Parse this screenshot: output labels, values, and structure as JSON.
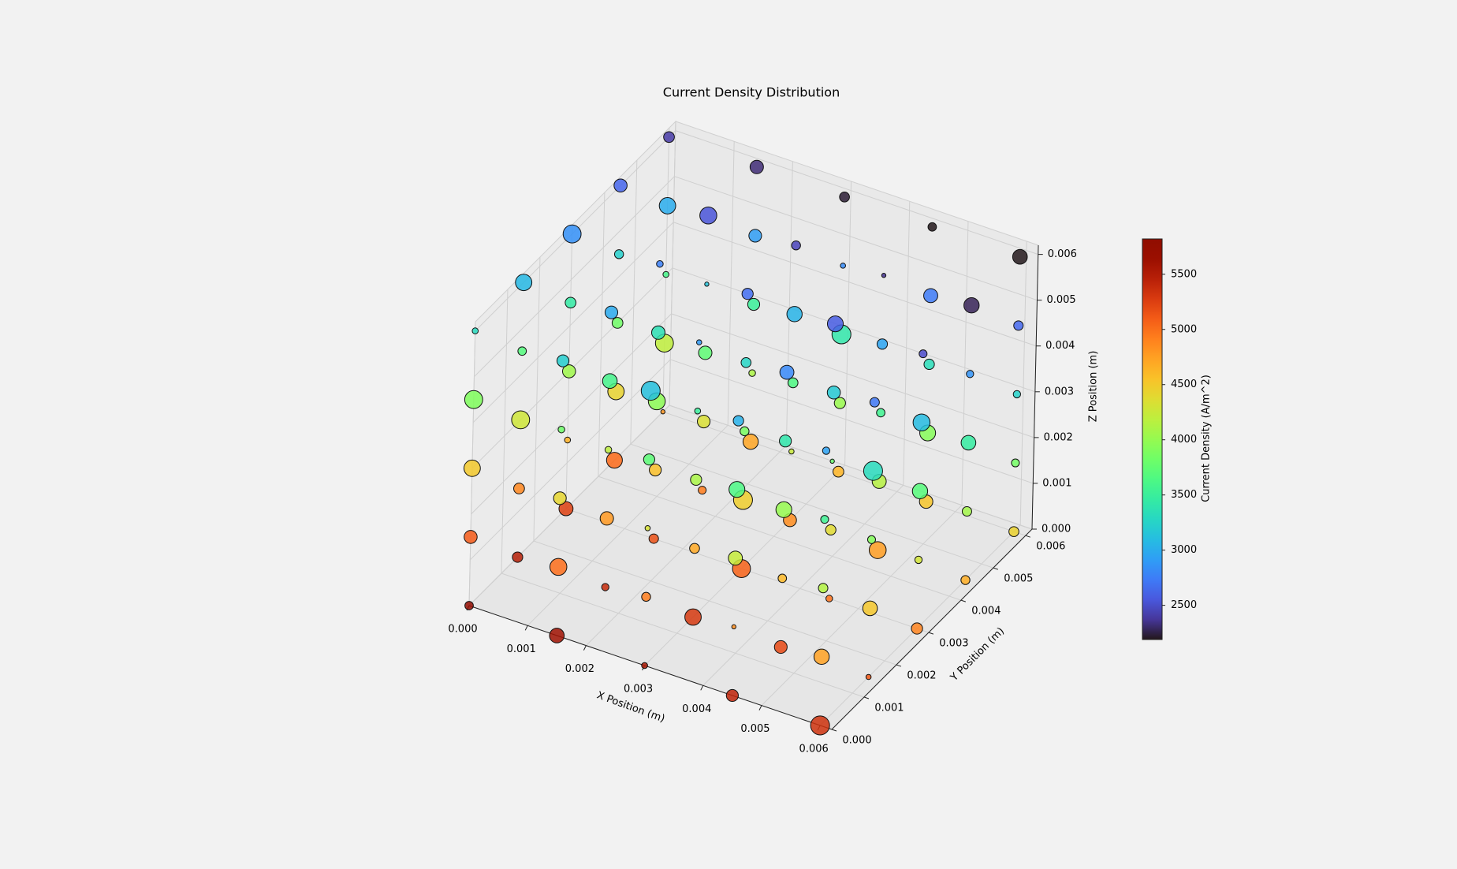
{
  "chart_data": {
    "type": "scatter3d",
    "title": "Current Density Distribution",
    "xlabel": "X Position (m)",
    "ylabel": "Y Position (m)",
    "zlabel": "Z Position (m)",
    "colorbar_label": "Current Density (A/m^2)",
    "colormap": "turbo",
    "clim": [
      2190,
      5820
    ],
    "cticks": [
      2500,
      3000,
      3500,
      4000,
      4500,
      5000,
      5500
    ],
    "xlim": [
      0,
      0.0062
    ],
    "ylim": [
      0,
      0.0062
    ],
    "zlim": [
      0,
      0.0062
    ],
    "xticks": [
      {
        "value": 0,
        "label": "0.000"
      },
      {
        "value": 0.001,
        "label": "0.001"
      },
      {
        "value": 0.002,
        "label": "0.002"
      },
      {
        "value": 0.003,
        "label": "0.003"
      },
      {
        "value": 0.004,
        "label": "0.004"
      },
      {
        "value": 0.005,
        "label": "0.005"
      },
      {
        "value": 0.006,
        "label": "0.006"
      }
    ],
    "yticks": [
      {
        "value": 0,
        "label": "0.000"
      },
      {
        "value": 0.001,
        "label": "0.001"
      },
      {
        "value": 0.002,
        "label": "0.002"
      },
      {
        "value": 0.003,
        "label": "0.003"
      },
      {
        "value": 0.004,
        "label": "0.004"
      },
      {
        "value": 0.005,
        "label": "0.005"
      },
      {
        "value": 0.006,
        "label": "0.006"
      }
    ],
    "zticks": [
      {
        "value": 0,
        "label": "0.000"
      },
      {
        "value": 0.001,
        "label": "0.001"
      },
      {
        "value": 0.002,
        "label": "0.002"
      },
      {
        "value": 0.003,
        "label": "0.003"
      },
      {
        "value": 0.004,
        "label": "0.004"
      },
      {
        "value": 0.005,
        "label": "0.005"
      },
      {
        "value": 0.006,
        "label": "0.006"
      }
    ],
    "x": [
      0,
      0.0015,
      0.003,
      0.0045,
      0.006,
      0,
      0.0015,
      0.003,
      0.0045,
      0.006,
      0,
      0.0015,
      0.003,
      0.0045,
      0.006,
      0,
      0.0015,
      0.003,
      0.0045,
      0.006,
      0,
      0.0015,
      0.003,
      0.0045,
      0.006,
      0,
      0.0015,
      0.003,
      0.0045,
      0.006,
      0,
      0.0015,
      0.003,
      0.0045,
      0.006,
      0,
      0.0015,
      0.003,
      0.0045,
      0.006,
      0,
      0.0015,
      0.003,
      0.0045,
      0.006,
      0,
      0.0015,
      0.003,
      0.0045,
      0.006,
      0,
      0.0015,
      0.003,
      0.0045,
      0.006,
      0,
      0.0015,
      0.003,
      0.0045,
      0.006,
      0,
      0.0015,
      0.003,
      0.0045,
      0.006,
      0,
      0.0015,
      0.003,
      0.0045,
      0.006,
      0,
      0.0015,
      0.003,
      0.0045,
      0.006,
      0,
      0.0015,
      0.003,
      0.0045,
      0.006,
      0,
      0.0015,
      0.003,
      0.0045,
      0.006,
      0,
      0.0015,
      0.003,
      0.0045,
      0.006,
      0,
      0.0015,
      0.003,
      0.0045,
      0.006,
      0,
      0.0015,
      0.003,
      0.0045,
      0.006,
      0,
      0.0015,
      0.003,
      0.0045,
      0.006,
      0,
      0.0015,
      0.003,
      0.0045,
      0.006,
      0,
      0.0015,
      0.003,
      0.0045,
      0.006,
      0,
      0.0015,
      0.003,
      0.0045,
      0.006,
      0,
      0.0015,
      0.003,
      0.0045,
      0.006
    ],
    "y": [
      0,
      0,
      0,
      0,
      0,
      0.0015,
      0.0015,
      0.0015,
      0.0015,
      0.0015,
      0.003,
      0.003,
      0.003,
      0.003,
      0.003,
      0.0045,
      0.0045,
      0.0045,
      0.0045,
      0.0045,
      0.006,
      0.006,
      0.006,
      0.006,
      0.006,
      0,
      0,
      0,
      0,
      0,
      0.0015,
      0.0015,
      0.0015,
      0.0015,
      0.0015,
      0.003,
      0.003,
      0.003,
      0.003,
      0.003,
      0.0045,
      0.0045,
      0.0045,
      0.0045,
      0.0045,
      0.006,
      0.006,
      0.006,
      0.006,
      0.006,
      0,
      0,
      0,
      0,
      0,
      0.0015,
      0.0015,
      0.0015,
      0.0015,
      0.0015,
      0.003,
      0.003,
      0.003,
      0.003,
      0.003,
      0.0045,
      0.0045,
      0.0045,
      0.0045,
      0.0045,
      0.006,
      0.006,
      0.006,
      0.006,
      0.006,
      0,
      0,
      0,
      0,
      0,
      0.0015,
      0.0015,
      0.0015,
      0.0015,
      0.0015,
      0.003,
      0.003,
      0.003,
      0.003,
      0.003,
      0.0045,
      0.0045,
      0.0045,
      0.0045,
      0.0045,
      0.006,
      0.006,
      0.006,
      0.006,
      0.006,
      0,
      0,
      0,
      0,
      0,
      0.0015,
      0.0015,
      0.0015,
      0.0015,
      0.0015,
      0.003,
      0.003,
      0.003,
      0.003,
      0.003,
      0.0045,
      0.0045,
      0.0045,
      0.0045,
      0.0045,
      0.006,
      0.006,
      0.006,
      0.006,
      0.006
    ],
    "z": [
      0,
      0,
      0,
      0,
      0,
      0,
      0,
      0,
      0,
      0,
      0,
      0,
      0,
      0,
      0,
      0,
      0,
      0,
      0,
      0,
      0,
      0,
      0,
      0,
      0,
      0.0015,
      0.0015,
      0.0015,
      0.0015,
      0.0015,
      0.0015,
      0.0015,
      0.0015,
      0.0015,
      0.0015,
      0.0015,
      0.0015,
      0.0015,
      0.0015,
      0.0015,
      0.0015,
      0.0015,
      0.0015,
      0.0015,
      0.0015,
      0.0015,
      0.0015,
      0.0015,
      0.0015,
      0.0015,
      0.003,
      0.003,
      0.003,
      0.003,
      0.003,
      0.003,
      0.003,
      0.003,
      0.003,
      0.003,
      0.003,
      0.003,
      0.003,
      0.003,
      0.003,
      0.003,
      0.003,
      0.003,
      0.003,
      0.003,
      0.003,
      0.003,
      0.003,
      0.003,
      0.003,
      0.0045,
      0.0045,
      0.0045,
      0.0045,
      0.0045,
      0.0045,
      0.0045,
      0.0045,
      0.0045,
      0.0045,
      0.0045,
      0.0045,
      0.0045,
      0.0045,
      0.0045,
      0.0045,
      0.0045,
      0.0045,
      0.0045,
      0.0045,
      0.0045,
      0.0045,
      0.0045,
      0.0045,
      0.0045,
      0.006,
      0.006,
      0.006,
      0.006,
      0.006,
      0.006,
      0.006,
      0.006,
      0.006,
      0.006,
      0.006,
      0.006,
      0.006,
      0.006,
      0.006,
      0.006,
      0.006,
      0.006,
      0.006,
      0.006,
      0.006,
      0.006,
      0.006,
      0.006,
      0.006
    ],
    "values": [
      5700,
      5610,
      5520,
      5430,
      5340,
      5475,
      5385,
      5295,
      5205,
      5115,
      5250,
      5160,
      5070,
      4980,
      4890,
      5025,
      4935,
      4845,
      4755,
      4665,
      4800,
      4710,
      4620,
      4530,
      4440,
      5100,
      5010,
      4920,
      4830,
      4740,
      4875,
      4785,
      4695,
      4605,
      4515,
      4650,
      4560,
      4470,
      4380,
      4290,
      4425,
      4335,
      4245,
      4155,
      4065,
      4200,
      4110,
      4020,
      3930,
      3840,
      4500,
      4410,
      4320,
      4230,
      4140,
      4275,
      4185,
      4095,
      4005,
      3915,
      4050,
      3960,
      3870,
      3780,
      3690,
      3825,
      3735,
      3645,
      3555,
      3465,
      3600,
      3510,
      3420,
      3330,
      3240,
      3900,
      3810,
      3720,
      3630,
      3540,
      3675,
      3585,
      3495,
      3405,
      3315,
      3450,
      3360,
      3270,
      3180,
      3090,
      3225,
      3135,
      3045,
      2955,
      2865,
      3000,
      2910,
      2820,
      2730,
      2640,
      3300,
      3210,
      3120,
      3030,
      2940,
      3075,
      2985,
      2895,
      2805,
      2715,
      2850,
      2760,
      2670,
      2580,
      2490,
      2625,
      2535,
      2445,
      2355,
      2265,
      2400,
      2310,
      2220,
      2130,
      2040
    ],
    "sizes": [
      40,
      120,
      20,
      80,
      200,
      60,
      30,
      150,
      90,
      15,
      110,
      50,
      180,
      25,
      70,
      140,
      35,
      95,
      160,
      45,
      10,
      130,
      65,
      100,
      55,
      95,
      160,
      45,
      10,
      130,
      65,
      100,
      55,
      40,
      120,
      20,
      80,
      200,
      60,
      30,
      150,
      90,
      15,
      110,
      50,
      180,
      25,
      70,
      140,
      35,
      150,
      90,
      15,
      110,
      50,
      180,
      25,
      70,
      140,
      35,
      95,
      160,
      45,
      10,
      130,
      65,
      100,
      55,
      40,
      120,
      20,
      80,
      200,
      60,
      30,
      180,
      25,
      70,
      140,
      35,
      40,
      120,
      20,
      80,
      200,
      65,
      100,
      55,
      95,
      160,
      45,
      10,
      130,
      60,
      30,
      150,
      90,
      15,
      110,
      50,
      20,
      80,
      200,
      60,
      30,
      150,
      90,
      15,
      110,
      50,
      180,
      25,
      70,
      140,
      35,
      95,
      160,
      45,
      10,
      130,
      65,
      100,
      55,
      40,
      120
    ]
  }
}
